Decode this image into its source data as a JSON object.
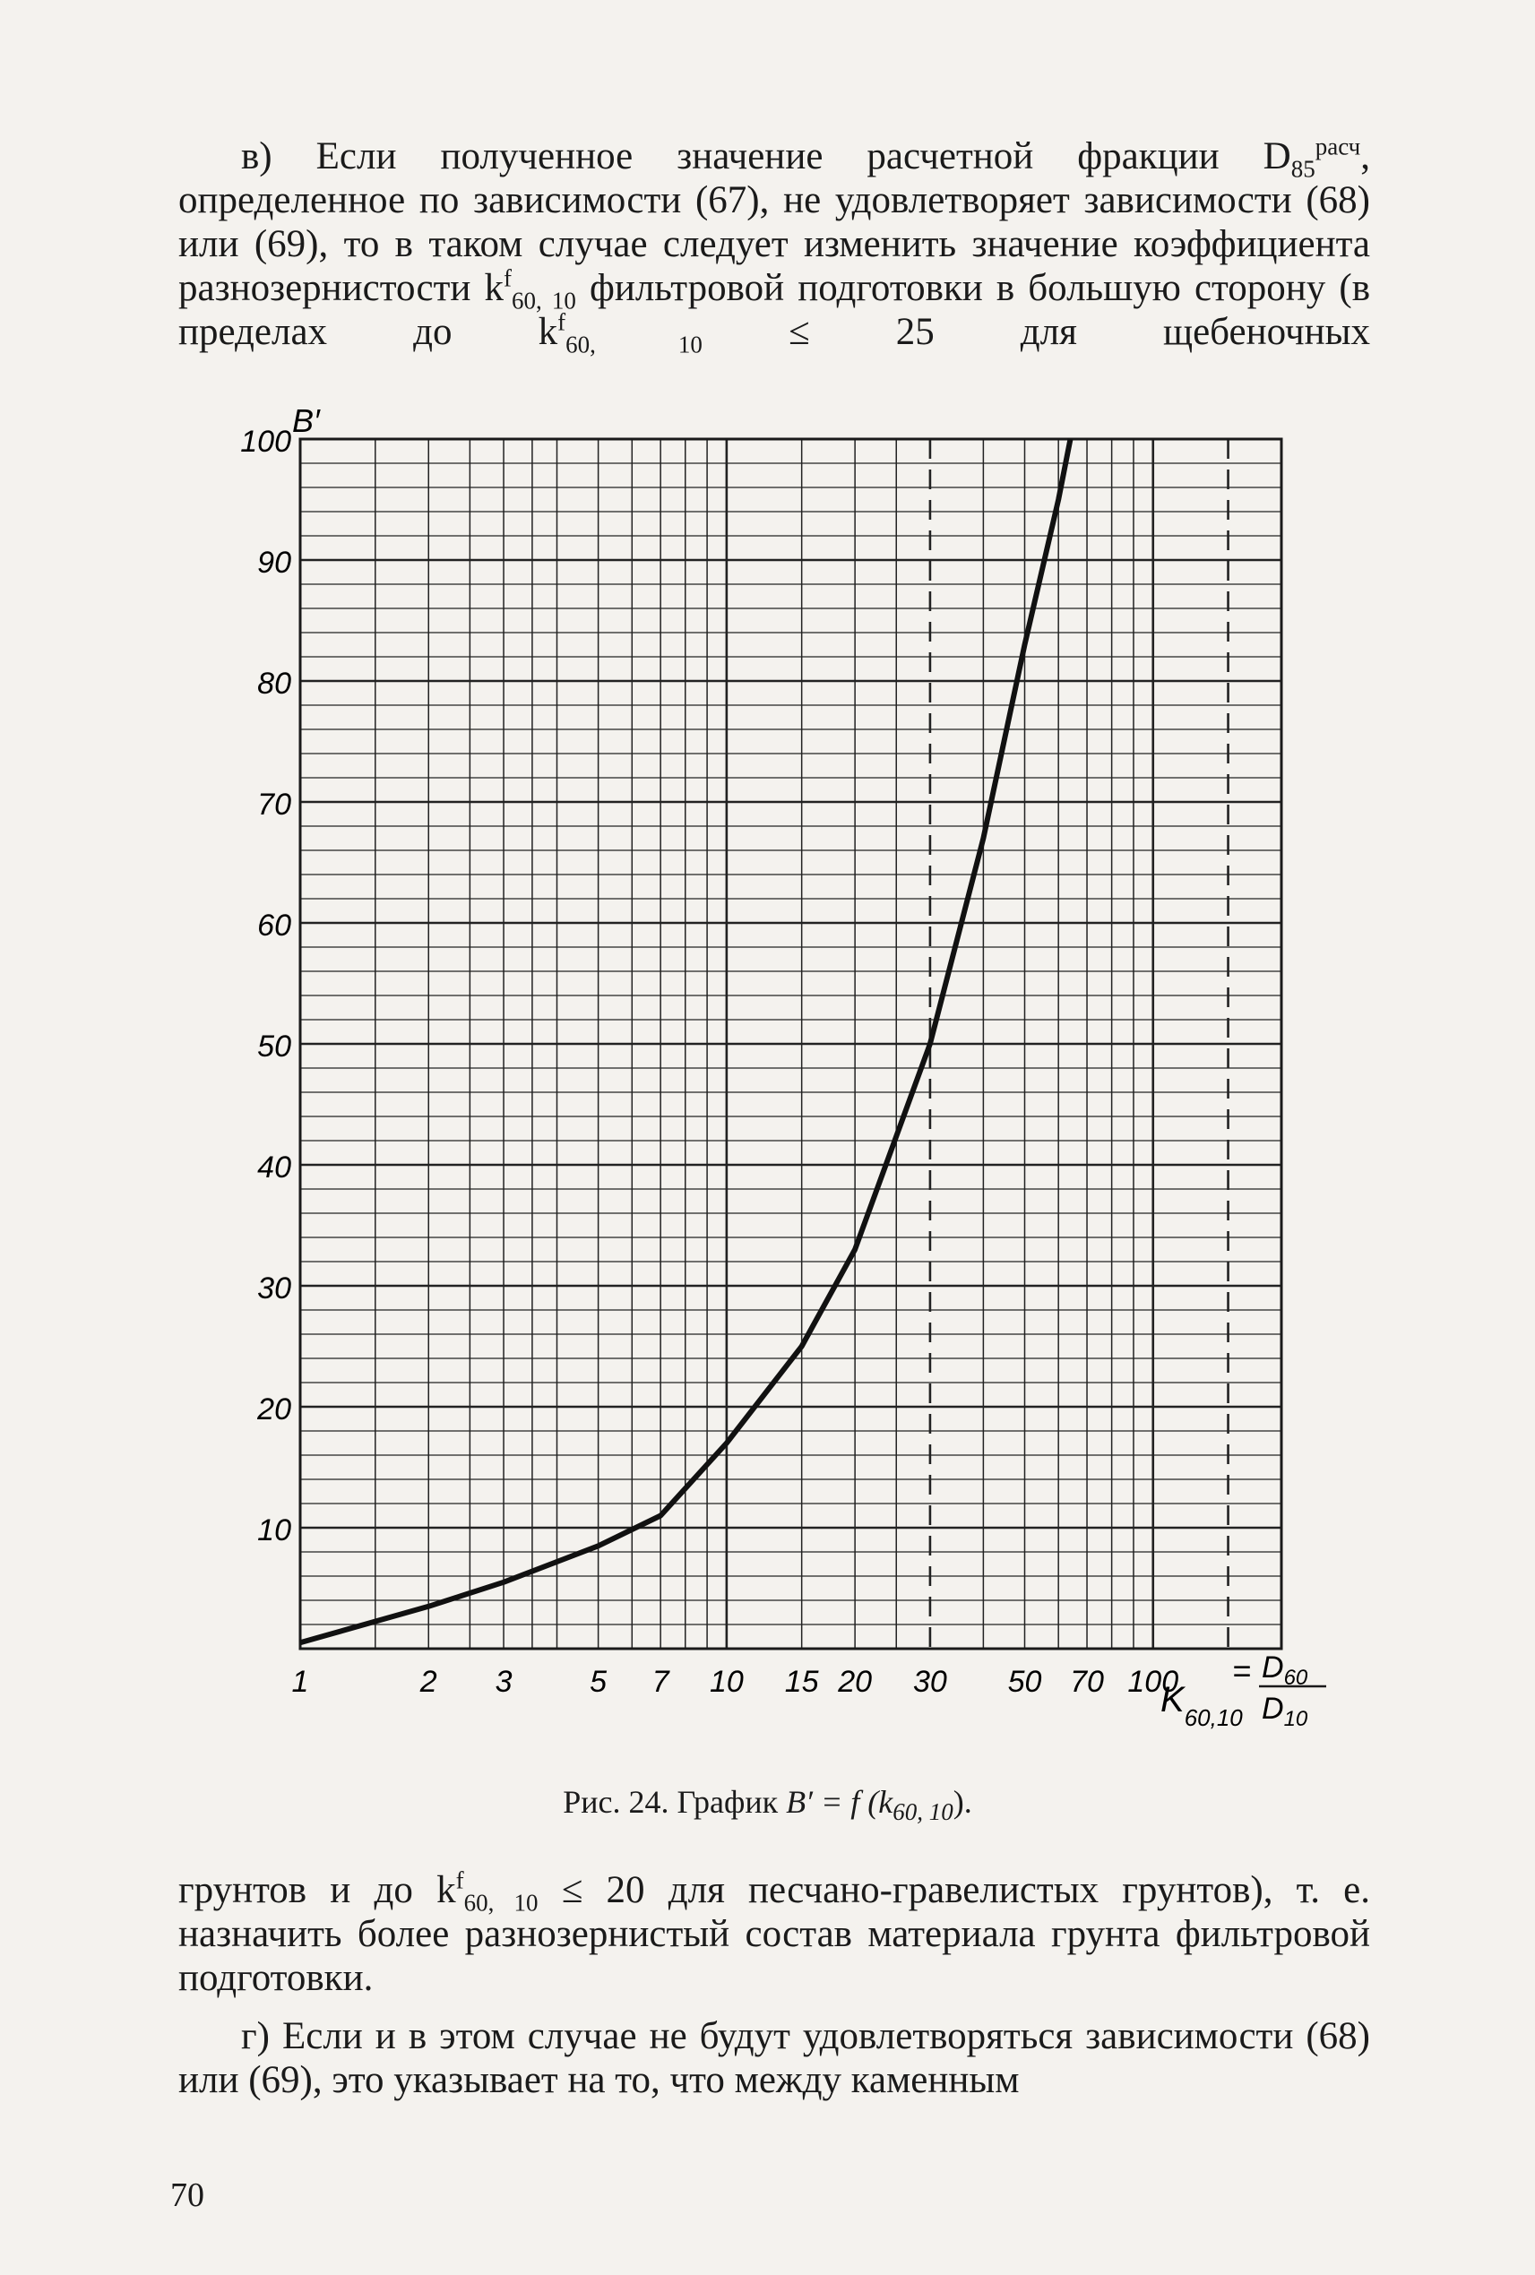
{
  "paragraphs_top": [
    "в) Если полученное значение расчетной фракции D",
    "85",
    "расч",
    ", определенное по зависимости (67), не удовлетворяет зависимости (68) или (69), то в таком случае следует изменить значение коэффициента разнозернистости k",
    "f",
    "60, 10",
    " фильтровой подготовки в большую сторону (в пределах до k",
    "f",
    "60, 10",
    " ≤ 25 для щебеночных"
  ],
  "para_bottom_1": [
    "грунтов и до k",
    "f",
    "60, 10",
    " ≤ 20 для песчано-гравелистых грунтов), т. е. назначить более разнозернистый состав материала грунта фильтровой подготовки."
  ],
  "para_bottom_2": "г) Если и в этом случае не будут удовлетворяться зависимости (68) или (69), это указывает на то, что между каменным",
  "caption": {
    "prefix": "Рис. 24. График ",
    "formula": "B′ = f (k",
    "sub": "60, 10",
    "suffix": ")."
  },
  "page_number": "70",
  "chart_data": {
    "type": "line",
    "x_scale": "log",
    "xlim": [
      1,
      200
    ],
    "ylim": [
      0,
      100
    ],
    "ylabel": "B′",
    "xlabel_parts": [
      "K",
      "60,10",
      "=",
      "D",
      "60",
      "D",
      "10"
    ],
    "x_tick_labels": [
      {
        "value": 1,
        "label": "1"
      },
      {
        "value": 2,
        "label": "2"
      },
      {
        "value": 3,
        "label": "3"
      },
      {
        "value": 5,
        "label": "5"
      },
      {
        "value": 7,
        "label": "7"
      },
      {
        "value": 10,
        "label": "10"
      },
      {
        "value": 15,
        "label": "15"
      },
      {
        "value": 20,
        "label": "20"
      },
      {
        "value": 30,
        "label": "30"
      },
      {
        "value": 50,
        "label": "50"
      },
      {
        "value": 70,
        "label": "70"
      },
      {
        "value": 100,
        "label": "100"
      }
    ],
    "y_tick_labels": [
      {
        "value": 10,
        "label": "10"
      },
      {
        "value": 20,
        "label": "20"
      },
      {
        "value": 30,
        "label": "30"
      },
      {
        "value": 40,
        "label": "40"
      },
      {
        "value": 50,
        "label": "50"
      },
      {
        "value": 60,
        "label": "60"
      },
      {
        "value": 70,
        "label": "70"
      },
      {
        "value": 80,
        "label": "80"
      },
      {
        "value": 90,
        "label": "90"
      },
      {
        "value": 100,
        "label": "100"
      }
    ],
    "x_grid": [
      1,
      1.5,
      2,
      2.5,
      3,
      3.5,
      4,
      5,
      6,
      7,
      8,
      9,
      10,
      15,
      20,
      25,
      30,
      40,
      50,
      60,
      70,
      80,
      90,
      100,
      150,
      200
    ],
    "x_grid_dashed": [
      30,
      150
    ],
    "y_grid_step": 2,
    "y_grid_major_step": 10,
    "grid": true,
    "series": [
      {
        "x": [
          1,
          2,
          3,
          5,
          7,
          10,
          15,
          20,
          30,
          40,
          50,
          60,
          64
        ],
        "y": [
          0.5,
          3.5,
          5.5,
          8.5,
          11,
          17,
          25,
          33,
          50,
          67,
          83,
          95,
          100
        ]
      }
    ]
  }
}
